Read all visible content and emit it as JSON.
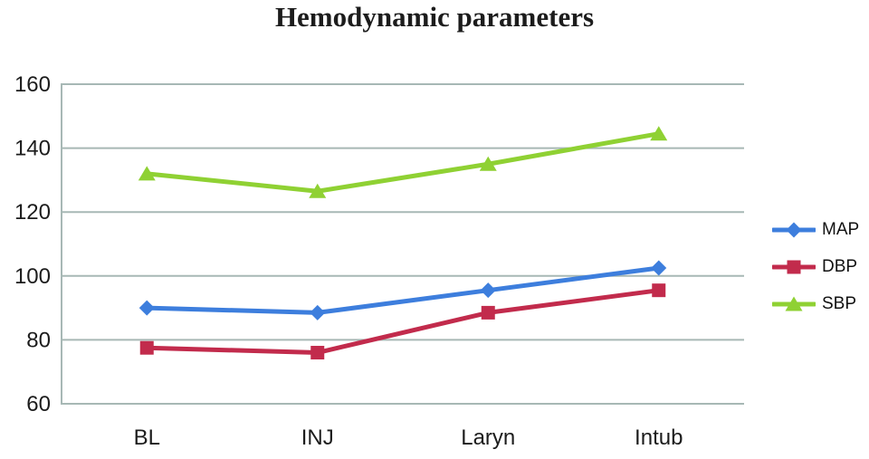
{
  "chart_data": {
    "type": "line",
    "title": "Hemodynamic parameters",
    "categories": [
      "BL",
      "INJ",
      "Laryn",
      "Intub"
    ],
    "series": [
      {
        "name": "MAP",
        "color": "#3d7edd",
        "marker": "diamond",
        "values": [
          90,
          88.5,
          95.5,
          102.5
        ]
      },
      {
        "name": "DBP",
        "color": "#c22b4c",
        "marker": "square",
        "values": [
          77.5,
          76,
          88.5,
          95.5
        ]
      },
      {
        "name": "SBP",
        "color": "#8fd133",
        "marker": "triangle",
        "values": [
          132,
          126.5,
          135,
          144.5
        ]
      }
    ],
    "xlabel": "",
    "ylabel": "",
    "ylim": [
      60,
      160
    ],
    "yticks": [
      60,
      80,
      100,
      120,
      140,
      160
    ],
    "grid": "horizontal",
    "legend_position": "right",
    "axis_color": "#a7b8b5",
    "tick_label_color": "#1c1c1c"
  }
}
